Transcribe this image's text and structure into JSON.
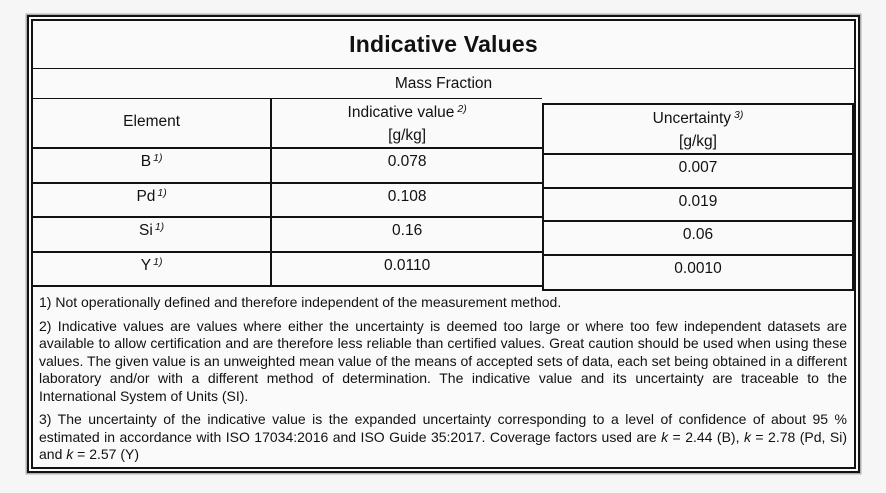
{
  "table": {
    "title": "Indicative Values",
    "subtitle": "Mass Fraction",
    "columns": {
      "element": {
        "label": "Element"
      },
      "indicative": {
        "label": "Indicative value",
        "sup": "2)",
        "unit": "[g/kg]"
      },
      "uncertainty": {
        "label": "Uncertainty",
        "sup": "3)",
        "unit": "[g/kg]"
      }
    },
    "rows": [
      {
        "element": "B",
        "element_sup": "1)",
        "indicative": "0.078",
        "uncertainty": "0.007"
      },
      {
        "element": "Pd",
        "element_sup": "1)",
        "indicative": "0.108",
        "uncertainty": "0.019"
      },
      {
        "element": "Si",
        "element_sup": "1)",
        "indicative": "0.16",
        "uncertainty": "0.06"
      },
      {
        "element": "Y",
        "element_sup": "1)",
        "indicative": "0.0110",
        "uncertainty": "0.0010"
      }
    ]
  },
  "footnotes": {
    "fn1": "1) Not operationally defined and therefore independent of the measurement method.",
    "fn2": "2) Indicative values are values where either the uncertainty is deemed too large or where too few independent datasets are available to allow certification and are therefore less reliable than certified values. Great caution should be used when using these values. The given value is an unweighted mean value of the means of accepted sets of data, each set being obtained in a different laboratory and/or with a different method of determination. The indicative value and its uncertainty are traceable to the International System of Units (SI).",
    "fn3": {
      "t1": "3) The uncertainty of the indicative value is the expanded uncertainty corresponding to a level of confidence of about 95 % estimated in accordance with ISO 17034:2016 and ISO Guide 35:2017. Coverage factors used are ",
      "k1": "k",
      "t2": " = 2.44 (B), ",
      "k2": "k",
      "t3": " = 2.78 (Pd, Si) and ",
      "k3": "k",
      "t4": " = 2.57 (Y)"
    }
  },
  "colors": {
    "page_background": "#f6f6f6",
    "table_background": "#fafafa",
    "border": "#121212",
    "text": "#111111"
  }
}
